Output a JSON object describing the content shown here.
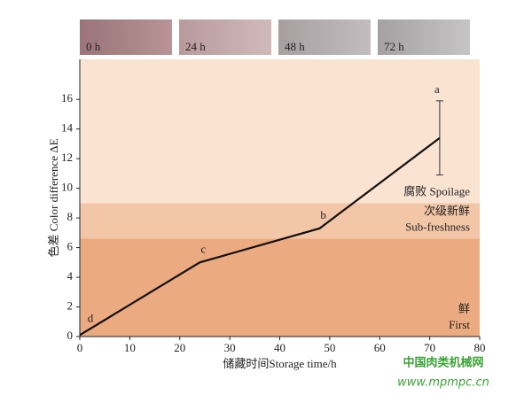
{
  "chart_data": {
    "type": "line",
    "photos": [
      "0 h",
      "24 h",
      "48 h",
      "72 h"
    ],
    "xlabel": "储藏时间Storage time/h",
    "ylabel": "色差 Color difference ΔE",
    "xlim": [
      0,
      80
    ],
    "xticks": [
      0,
      10,
      20,
      30,
      40,
      50,
      60,
      70,
      80
    ],
    "ylim": [
      0,
      18.7
    ],
    "yticks": [
      0,
      2,
      4,
      6,
      8,
      10,
      12,
      14,
      16
    ],
    "zones": [
      {
        "from": 0,
        "to": 6.6,
        "color": "#ecaa80",
        "label": [
          "鲜",
          "First"
        ]
      },
      {
        "from": 6.6,
        "to": 9,
        "color": "#f4c6a8",
        "label": [
          "次级新鲜",
          "Sub-freshness"
        ]
      },
      {
        "from": 9,
        "to": 18.7,
        "color": "#fbe3d2",
        "label": [
          "腐败 Spoilage"
        ]
      }
    ],
    "x": [
      0,
      24,
      48,
      72
    ],
    "series": [
      {
        "color": "#111111",
        "values": [
          0.1,
          5.0,
          7.3,
          13.4
        ],
        "errors": [
          null,
          null,
          null,
          2.5
        ],
        "point_labels": [
          "d",
          "c",
          "b",
          "a"
        ]
      }
    ],
    "watermark": [
      "中国肉类机械网",
      "www.mpmpc.cn"
    ]
  }
}
